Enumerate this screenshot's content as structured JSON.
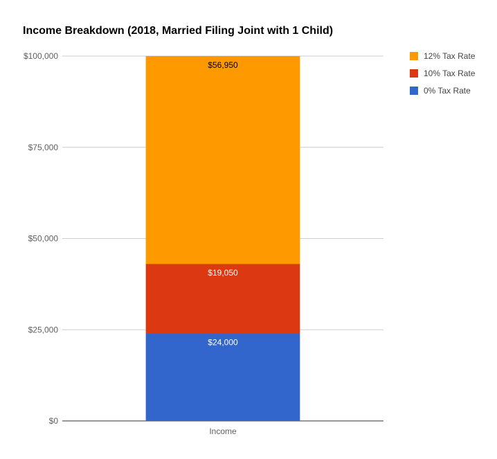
{
  "chart_data": {
    "type": "bar",
    "stacked": true,
    "title": "Income Breakdown (2018, Married Filing Joint with 1 Child)",
    "categories": [
      "Income"
    ],
    "series": [
      {
        "name": "0% Tax Rate",
        "values": [
          24000
        ],
        "color": "#3366cc",
        "data_labels": [
          "$24,000"
        ],
        "label_color": "#ffffff"
      },
      {
        "name": "10% Tax Rate",
        "values": [
          19050
        ],
        "color": "#dc3912",
        "data_labels": [
          "$19,050"
        ],
        "label_color": "#ffffff"
      },
      {
        "name": "12% Tax Rate",
        "values": [
          56950
        ],
        "color": "#ff9900",
        "data_labels": [
          "$56,950"
        ],
        "label_color": "#000000"
      }
    ],
    "legend_order": [
      "12% Tax Rate",
      "10% Tax Rate",
      "0% Tax Rate"
    ],
    "legend_position": "right",
    "y_ticks": [
      0,
      25000,
      50000,
      75000,
      100000
    ],
    "y_tick_labels": [
      "$0",
      "$25,000",
      "$50,000",
      "$75,000",
      "$100,000"
    ],
    "ylim": [
      0,
      100000
    ],
    "grid": true,
    "xlabel": "",
    "ylabel": ""
  }
}
